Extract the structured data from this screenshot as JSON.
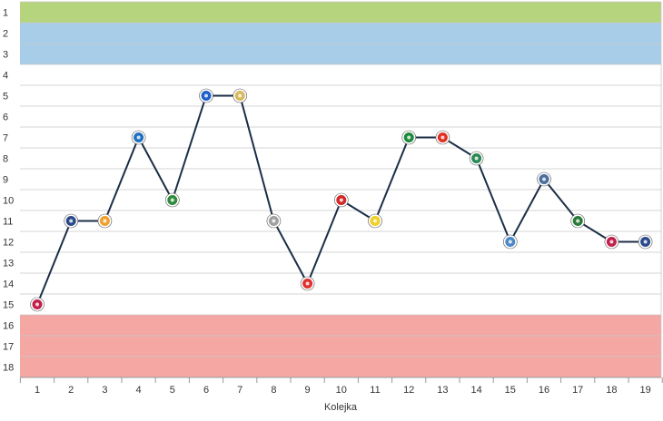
{
  "chart_data": {
    "type": "line",
    "xlabel": "Kolejka",
    "ylabel": "",
    "x": [
      1,
      2,
      3,
      4,
      5,
      6,
      7,
      8,
      9,
      10,
      11,
      12,
      13,
      14,
      15,
      16,
      17,
      18,
      19
    ],
    "y": [
      15,
      11,
      11,
      7,
      10,
      5,
      5,
      11,
      14,
      10,
      11,
      7,
      7,
      8,
      12,
      9,
      11,
      12,
      12
    ],
    "y_ticks": [
      1,
      2,
      3,
      4,
      5,
      6,
      7,
      8,
      9,
      10,
      11,
      12,
      13,
      14,
      15,
      16,
      17,
      18
    ],
    "x_ticks": [
      1,
      2,
      3,
      4,
      5,
      6,
      7,
      8,
      9,
      10,
      11,
      12,
      13,
      14,
      15,
      16,
      17,
      18,
      19
    ],
    "ylim": [
      1,
      18
    ],
    "y_reversed": true,
    "grid": true,
    "zones": [
      {
        "from": 1,
        "to": 1,
        "color": "#b5d47d"
      },
      {
        "from": 2,
        "to": 3,
        "color": "#a8cde8"
      },
      {
        "from": 16,
        "to": 18,
        "color": "#f4a7a3"
      }
    ],
    "line_color": "#1c2e47",
    "marker_colors": [
      "#c0204a",
      "#2a4a8a",
      "#f0a030",
      "#1f70c0",
      "#2e8b3e",
      "#1c60c8",
      "#d7b95a",
      "#a0a0a0",
      "#e03030",
      "#d02828",
      "#f0d020",
      "#1a8a3a",
      "#e03020",
      "#2a8a55",
      "#4a88c8",
      "#4a6e9e",
      "#2a7a3a",
      "#c0204a",
      "#2a4a8a"
    ]
  }
}
